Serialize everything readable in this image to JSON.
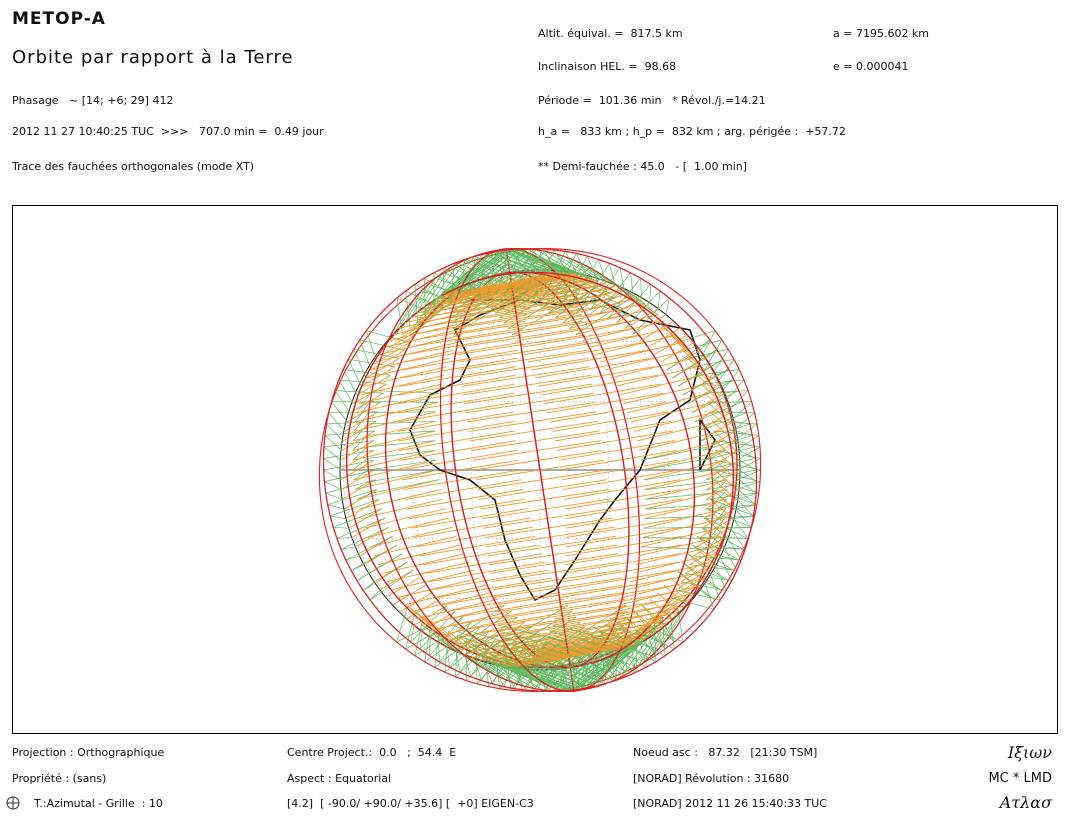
{
  "header": {
    "title": "METOP-A",
    "subtitle": "Orbite par rapport à la Terre",
    "left_lines": [
      "Phasage   ~ [14; +6; 29] 412",
      "2012 11 27 10:40:25 TUC  >>>   707.0 min =  0.49 jour",
      "Trace des fauchées orthogonales (mode XT)"
    ],
    "right_lines": [
      [
        "Altit. équival. =  817.5 km",
        "a = 7195.602 km"
      ],
      [
        "Inclinaison HEL. =  98.68",
        "e = 0.000041"
      ],
      [
        "Période =  101.36 min   * Révol./j.=14.21"
      ],
      [
        "h_a =   833 km ; h_p =  832 km ; arg. périgée :  +57.72"
      ],
      [
        "** Demi-fauchée : 45.0   - [  1.00 min]"
      ]
    ]
  },
  "footer": {
    "columns": [
      [
        "Projection : Orthographique",
        "Propriété : (sans)",
        "T.:Azimutal - Grille  : 10"
      ],
      [
        "Centre Project.:  0.0   ;  54.4  E",
        "Aspect : Equatorial",
        "[4.2]  [ -90.0/ +90.0/ +35.6] [  +0] EIGEN-C3"
      ],
      [
        "Noeud asc :   87.32   [21:30 TSM]",
        "[NORAD] Révolution : 31680",
        "[NORAD] 2012 11 26 15:40:33 TUC"
      ],
      [
        "Ιξιων",
        "MC * LMD",
        "Ατλασ"
      ]
    ]
  }
}
